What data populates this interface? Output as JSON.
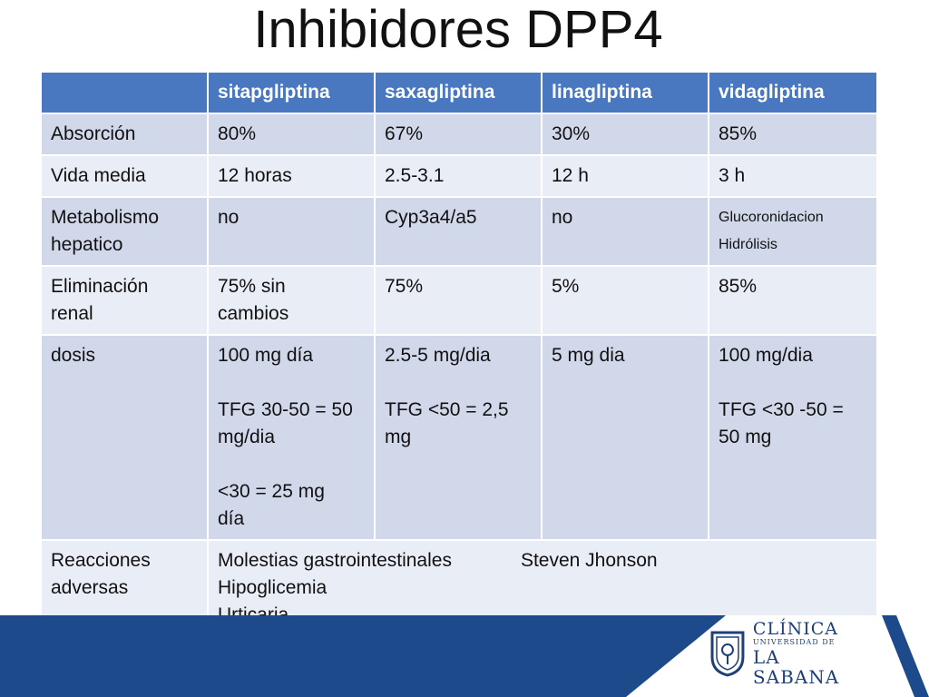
{
  "title": "Inhibidores DPP4",
  "table": {
    "headers": [
      "",
      "sitapgliptina",
      "saxagliptina",
      "linagliptina",
      "vidagliptina"
    ],
    "absorcion": [
      "Absorción",
      "80%",
      "67%",
      "30%",
      "85%"
    ],
    "vida_media": [
      "Vida media",
      "12 horas",
      "2.5-3.1",
      "12 h",
      "3 h"
    ],
    "metabolismo": {
      "label": [
        "Metabolismo",
        "hepatico"
      ],
      "sita": "no",
      "saxa": "Cyp3a4/a5",
      "lina": "no",
      "vida": [
        "Glucoronidacion",
        "Hidrólisis"
      ]
    },
    "eliminacion": {
      "label": [
        "Eliminación",
        "renal"
      ],
      "sita": [
        "75% sin",
        "cambios"
      ],
      "saxa": "75%",
      "lina": "5%",
      "vida": "85%"
    },
    "dosis": {
      "label": "dosis",
      "sita": [
        "100 mg día",
        "TFG 30-50 = 50",
        "mg/dia",
        "<30 = 25 mg",
        "día"
      ],
      "saxa": [
        "2.5-5 mg/dia",
        "TFG <50 = 2,5",
        "mg"
      ],
      "lina": "5 mg dia",
      "vida": [
        "100 mg/dia",
        "TFG <30 -50 =",
        "50 mg"
      ]
    },
    "reacciones": {
      "label": [
        "Reacciones",
        "adversas"
      ],
      "col1": [
        "Molestias gastrointestinales",
        "Hipoglicemia",
        "Urticaria"
      ],
      "col2": [
        "Steven Jhonson"
      ]
    }
  },
  "footer": {
    "logo_line1": "CLÍNICA",
    "logo_line2": "UNIVERSIDAD DE",
    "logo_line3": "LA SABANA",
    "band_color": "#1d4a8a"
  }
}
